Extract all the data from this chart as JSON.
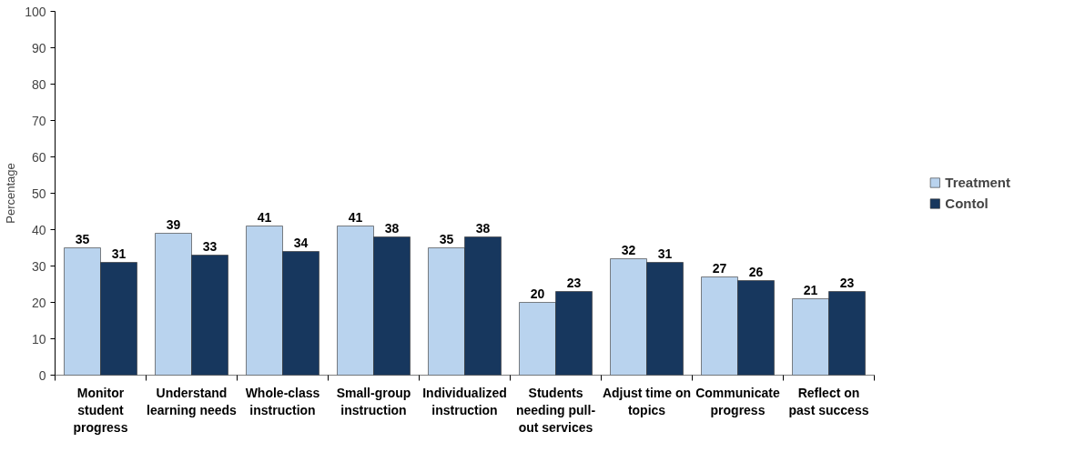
{
  "chart_data": {
    "type": "bar",
    "ylabel": "Percentage",
    "categories": [
      "Monitor student progress",
      "Understand learning needs",
      "Whole-class instruction",
      "Small-group instruction",
      "Individualized instruction",
      "Students needing pull-out services",
      "Adjust time on topics",
      "Communicate progress",
      "Reflect on past success"
    ],
    "series": [
      {
        "name": "Treatment",
        "color": "#b9d3ee",
        "values": [
          35,
          39,
          41,
          41,
          35,
          20,
          32,
          27,
          21
        ]
      },
      {
        "name": "Contol",
        "color": "#17375e",
        "values": [
          31,
          33,
          34,
          38,
          38,
          23,
          31,
          26,
          23
        ]
      }
    ],
    "ylim": [
      0,
      100
    ],
    "yticks": [
      0,
      10,
      20,
      30,
      40,
      50,
      60,
      70,
      80,
      90,
      100
    ],
    "data_labels": true,
    "grid": false,
    "legend": "right"
  }
}
